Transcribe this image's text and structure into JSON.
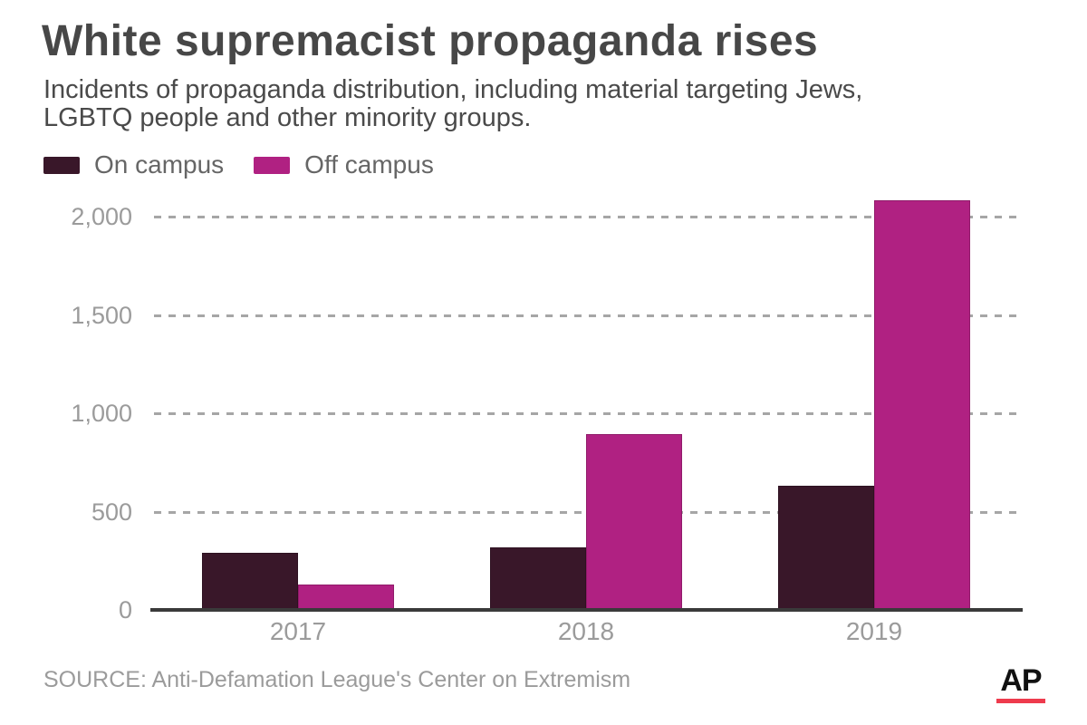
{
  "header": {
    "title": "White supremacist propaganda rises",
    "subtitle_line1": "Incidents of propaganda distribution, including material targeting Jews,",
    "subtitle_line2": "LGBTQ people and other minority groups."
  },
  "legend": {
    "items": [
      {
        "label": "On campus",
        "color": "#391729"
      },
      {
        "label": "Off campus",
        "color": "#b02182"
      }
    ]
  },
  "chart_data": {
    "type": "bar",
    "title": "White supremacist propaganda rises",
    "subtitle": "Incidents of propaganda distribution, including material targeting Jews, LGBTQ people and other minority groups.",
    "categories": [
      "2017",
      "2018",
      "2019"
    ],
    "series": [
      {
        "name": "On campus",
        "color": "#391729",
        "values": [
          292,
          320,
          630
        ]
      },
      {
        "name": "Off campus",
        "color": "#b02182",
        "values": [
          129,
          894,
          2083
        ]
      }
    ],
    "xlabel": "",
    "ylabel": "",
    "ylim": [
      0,
      2100
    ],
    "yticks": [
      0,
      500,
      1000,
      1500,
      2000
    ],
    "ytick_labels": [
      "0",
      "500",
      "1,000",
      "1,500",
      "2,000"
    ],
    "grid": "horizontal-dashed",
    "legend_position": "top-left",
    "bar_orientation": "vertical"
  },
  "footer": {
    "source": "SOURCE: Anti-Defamation League's Center on Extremism",
    "logo_text": "AP"
  },
  "colors": {
    "title_text": "#474747",
    "axis_text": "#9b9b9b",
    "legend_text": "#666666",
    "gridline": "#a6a6a6",
    "axis_line": "#3a3a3a",
    "ap_red": "#ee3b4d"
  }
}
